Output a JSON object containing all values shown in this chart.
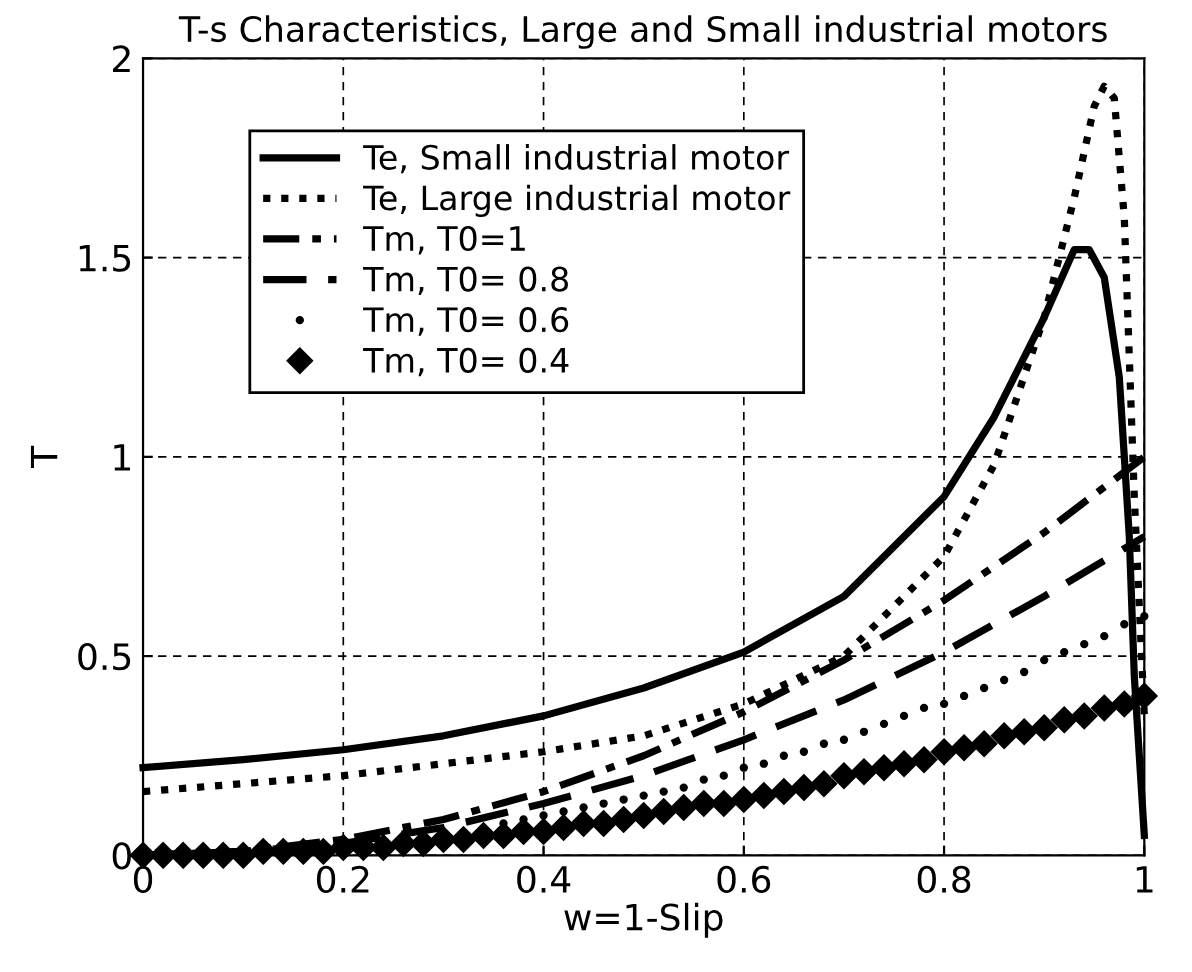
{
  "chart_data": {
    "type": "line",
    "title": "T-s Characteristics, Large and Small industrial motors",
    "xlabel": "w=1-Slip",
    "ylabel": "T",
    "xlim": [
      0,
      1
    ],
    "ylim": [
      0,
      2
    ],
    "xticks": [
      0,
      0.2,
      0.4,
      0.6,
      0.8,
      1
    ],
    "yticks": [
      0,
      0.5,
      1,
      1.5,
      2
    ],
    "grid": true,
    "legend": "top left",
    "series": [
      {
        "name": "Te, Small industrial motor",
        "color": "#000000",
        "line_style": "solid",
        "x": [
          0,
          0.1,
          0.2,
          0.3,
          0.4,
          0.5,
          0.6,
          0.7,
          0.8,
          0.85,
          0.9,
          0.93,
          0.945,
          0.96,
          0.975,
          0.985,
          0.99,
          1.0
        ],
        "values": [
          0.22,
          0.24,
          0.265,
          0.3,
          0.35,
          0.42,
          0.51,
          0.65,
          0.9,
          1.1,
          1.35,
          1.52,
          1.52,
          1.45,
          1.2,
          0.8,
          0.45,
          0.05
        ]
      },
      {
        "name": "Te, Large industrial motor",
        "color": "#000000",
        "line_style": "dotted",
        "x": [
          0,
          0.1,
          0.2,
          0.3,
          0.4,
          0.5,
          0.6,
          0.7,
          0.8,
          0.85,
          0.9,
          0.93,
          0.95,
          0.96,
          0.97,
          0.98,
          0.99,
          1.0
        ],
        "values": [
          0.16,
          0.18,
          0.2,
          0.23,
          0.26,
          0.3,
          0.38,
          0.5,
          0.75,
          0.98,
          1.35,
          1.65,
          1.88,
          1.93,
          1.9,
          1.6,
          0.9,
          0.35
        ]
      },
      {
        "name": "Tm, T0=1",
        "color": "#000000",
        "line_style": "dashdot",
        "x": [
          0,
          0.1,
          0.2,
          0.3,
          0.4,
          0.5,
          0.6,
          0.7,
          0.8,
          0.9,
          1.0
        ],
        "values": [
          0,
          0.01,
          0.04,
          0.09,
          0.16,
          0.25,
          0.36,
          0.49,
          0.64,
          0.81,
          1.0
        ]
      },
      {
        "name": "Tm, T0= 0.8",
        "color": "#000000",
        "line_style": "dashed",
        "x": [
          0,
          0.1,
          0.2,
          0.3,
          0.4,
          0.5,
          0.6,
          0.7,
          0.8,
          0.9,
          1.0
        ],
        "values": [
          0,
          0.01,
          0.03,
          0.07,
          0.13,
          0.2,
          0.29,
          0.39,
          0.51,
          0.65,
          0.8
        ]
      },
      {
        "name": "Tm, T0= 0.6",
        "type": "scatter",
        "color": "#000000",
        "marker": "circle",
        "x": [
          0.36,
          0.38,
          0.4,
          0.42,
          0.44,
          0.46,
          0.48,
          0.5,
          0.52,
          0.54,
          0.56,
          0.58,
          0.6,
          0.62,
          0.64,
          0.66,
          0.68,
          0.7,
          0.72,
          0.74,
          0.76,
          0.78,
          0.8,
          0.82,
          0.84,
          0.86,
          0.88,
          0.9,
          0.92,
          0.94,
          0.96,
          0.98,
          1.0
        ],
        "values": [
          0.08,
          0.09,
          0.1,
          0.11,
          0.12,
          0.13,
          0.14,
          0.15,
          0.16,
          0.17,
          0.19,
          0.2,
          0.22,
          0.23,
          0.25,
          0.26,
          0.28,
          0.29,
          0.31,
          0.33,
          0.35,
          0.37,
          0.38,
          0.4,
          0.42,
          0.44,
          0.46,
          0.49,
          0.51,
          0.53,
          0.55,
          0.58,
          0.6
        ]
      },
      {
        "name": "Tm, T0= 0.4",
        "type": "scatter",
        "color": "#000000",
        "marker": "diamond",
        "x": [
          0,
          0.02,
          0.04,
          0.06,
          0.08,
          0.1,
          0.12,
          0.14,
          0.16,
          0.18,
          0.2,
          0.22,
          0.24,
          0.26,
          0.28,
          0.3,
          0.32,
          0.34,
          0.36,
          0.38,
          0.4,
          0.42,
          0.44,
          0.46,
          0.48,
          0.5,
          0.52,
          0.54,
          0.56,
          0.58,
          0.6,
          0.62,
          0.64,
          0.66,
          0.68,
          0.7,
          0.72,
          0.74,
          0.76,
          0.78,
          0.8,
          0.82,
          0.84,
          0.86,
          0.88,
          0.9,
          0.92,
          0.94,
          0.96,
          0.98,
          1.0
        ],
        "values": [
          0,
          0,
          0,
          0,
          0,
          0,
          0.01,
          0.01,
          0.01,
          0.01,
          0.02,
          0.02,
          0.02,
          0.03,
          0.03,
          0.04,
          0.04,
          0.05,
          0.05,
          0.06,
          0.06,
          0.07,
          0.08,
          0.08,
          0.09,
          0.1,
          0.11,
          0.12,
          0.13,
          0.13,
          0.14,
          0.15,
          0.16,
          0.17,
          0.18,
          0.2,
          0.21,
          0.22,
          0.23,
          0.24,
          0.26,
          0.27,
          0.28,
          0.3,
          0.31,
          0.32,
          0.34,
          0.35,
          0.37,
          0.38,
          0.4
        ]
      }
    ]
  }
}
